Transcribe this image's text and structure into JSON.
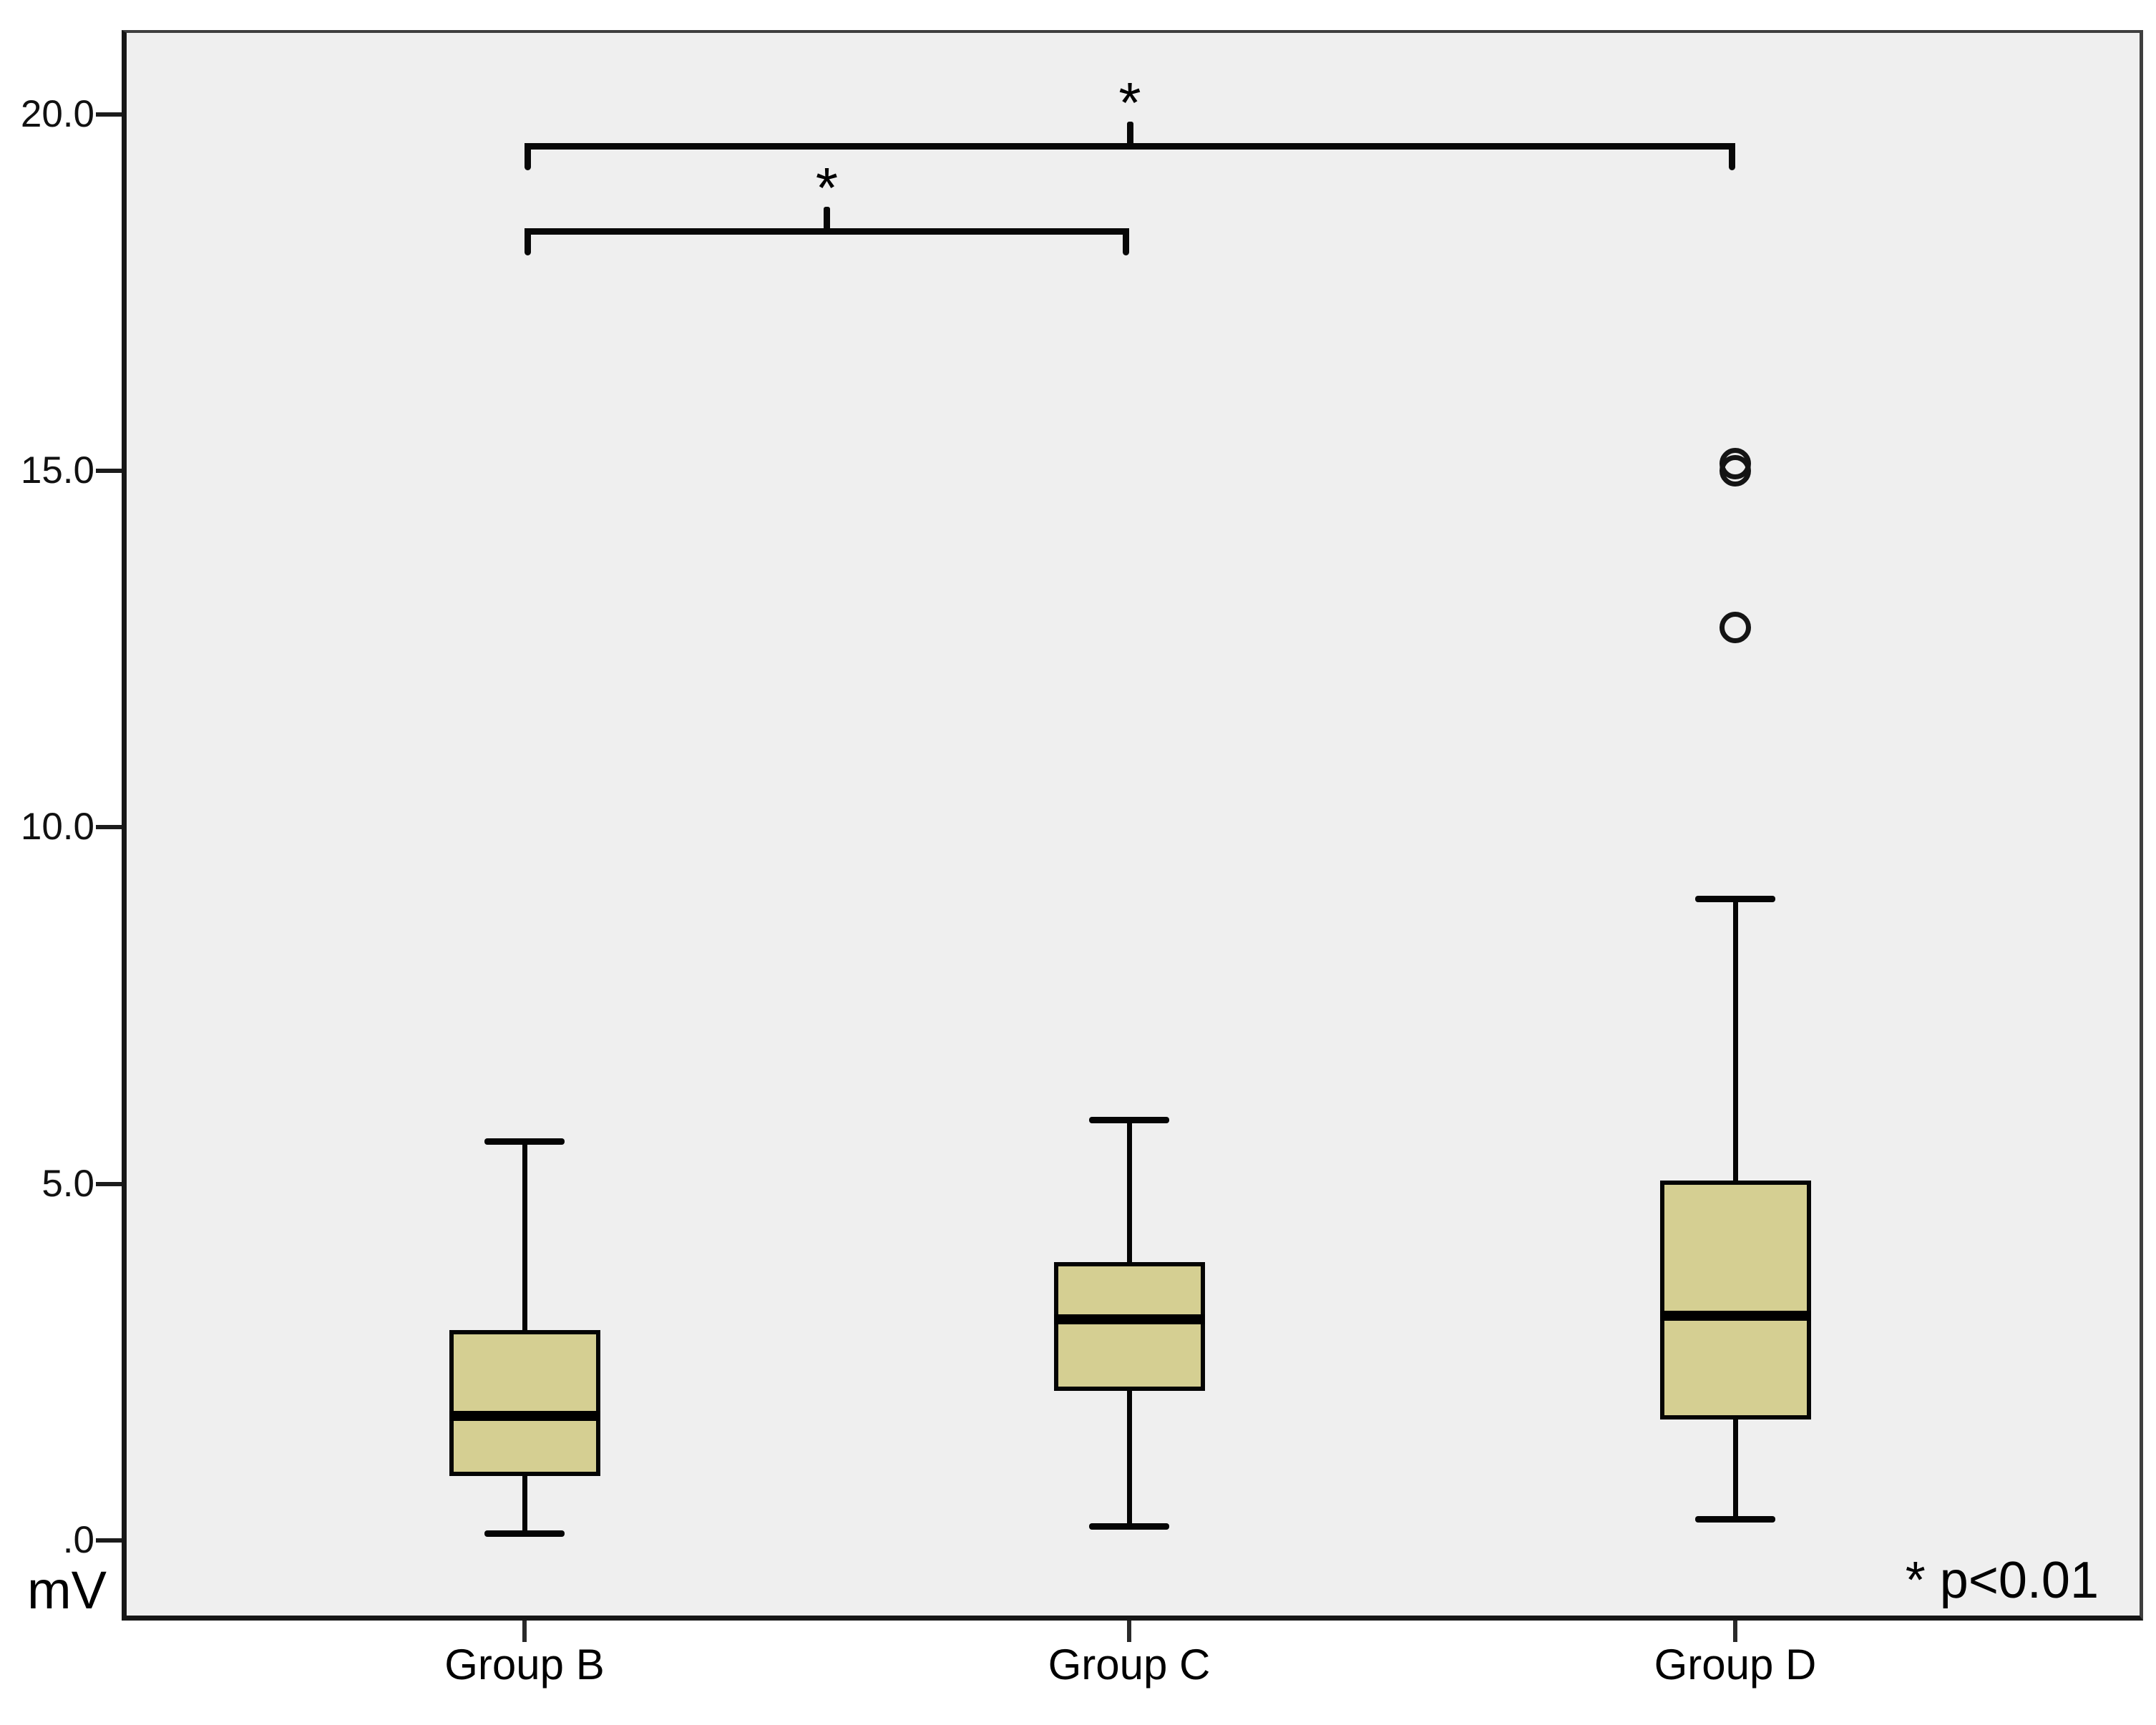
{
  "figure": {
    "axis_unit_label": "mV",
    "significance_note": "* p<0.01"
  },
  "chart_data": {
    "type": "boxplot",
    "title": "",
    "ylabel": "mV",
    "ylim": [
      0,
      20.6
    ],
    "grid": false,
    "legend": "none",
    "yticks": [
      {
        "label": "20.0",
        "value": 20.0
      },
      {
        "label": "15.0",
        "value": 15.0
      },
      {
        "label": "10.0",
        "value": 10.0
      },
      {
        "label": "5.0",
        "value": 5.0
      },
      {
        "label": ".0",
        "value": 0.0
      }
    ],
    "categories": [
      "Group B",
      "Group C",
      "Group D"
    ],
    "series": [
      {
        "name": "Group B",
        "whisker_low": 0.1,
        "q1": 0.9,
        "median": 1.75,
        "q3": 2.95,
        "whisker_high": 5.6,
        "outliers": []
      },
      {
        "name": "Group C",
        "whisker_low": 0.2,
        "q1": 2.1,
        "median": 3.1,
        "q3": 3.9,
        "whisker_high": 5.9,
        "outliers": []
      },
      {
        "name": "Group D",
        "whisker_low": 0.3,
        "q1": 1.7,
        "median": 3.15,
        "q3": 5.05,
        "whisker_high": 9.0,
        "outliers": [
          15.1,
          15.0,
          12.8
        ]
      }
    ],
    "annotations": {
      "brackets": [
        {
          "from": "Group B",
          "to": "Group C",
          "label": "*",
          "y_value": 18.4
        },
        {
          "from": "Group B",
          "to": "Group D",
          "label": "*",
          "y_value": 19.6
        }
      ],
      "note": "* p<0.01"
    },
    "style": {
      "box_fill": "#d5cf92",
      "line_color": "#050505",
      "plot_bg": "#efefef",
      "page_bg": "#ffffff",
      "border_color": "#3f3f3f"
    }
  }
}
